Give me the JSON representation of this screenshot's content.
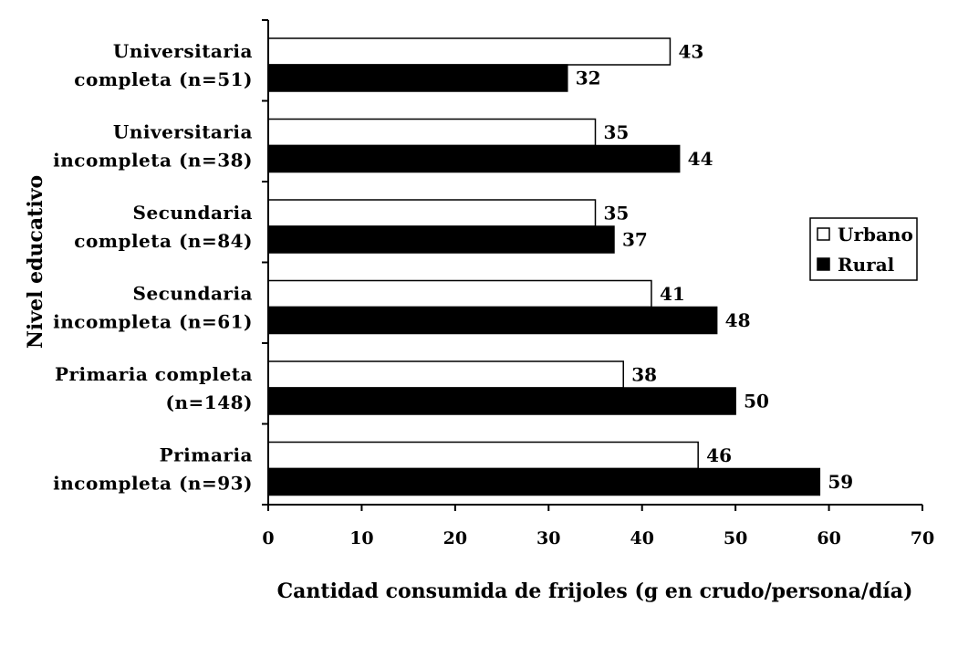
{
  "chart_data": {
    "type": "bar",
    "orientation": "horizontal",
    "title": "",
    "xlabel": "Cantidad consumida de frijoles (g en crudo/persona/día)",
    "ylabel": "Nivel educativo",
    "xlim": [
      0,
      70
    ],
    "xticks": [
      "0",
      "10",
      "20",
      "30",
      "40",
      "50",
      "60",
      "70"
    ],
    "grid": false,
    "legend_position": "right",
    "categories": [
      [
        "Universitaria",
        "completa (n=51)"
      ],
      [
        "Universitaria",
        "incompleta (n=38)"
      ],
      [
        "Secundaria",
        "completa (n=84)"
      ],
      [
        "Secundaria",
        "incompleta (n=61)"
      ],
      [
        "Primaria completa",
        "(n=148)"
      ],
      [
        "Primaria",
        "incompleta (n=93)"
      ]
    ],
    "series": [
      {
        "name": "Urbano",
        "color": "#ffffff",
        "values": [
          43,
          35,
          35,
          41,
          38,
          46
        ]
      },
      {
        "name": "Rural",
        "color": "#000000",
        "values": [
          32,
          44,
          37,
          48,
          50,
          59
        ]
      }
    ]
  }
}
